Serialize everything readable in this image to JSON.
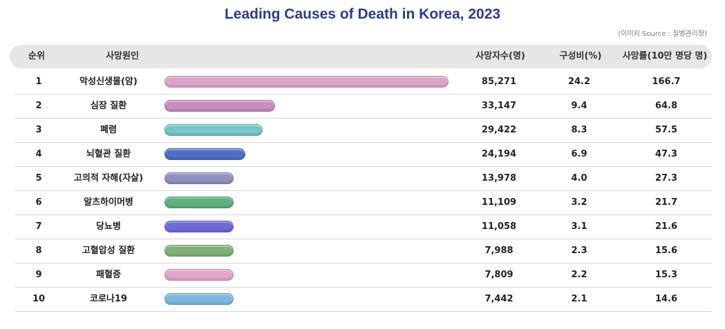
{
  "title": "Leading Causes of Death in Korea, 2023",
  "source": "(이미지 Source : 질병관리청)",
  "headers": {
    "rank": "순위",
    "cause": "사망원인",
    "deaths": "사망자수(명)",
    "share": "구성비(%)",
    "rate": "사망률(10만 명당 명)"
  },
  "chart_data": {
    "type": "bar",
    "orientation": "horizontal",
    "title": "Leading Causes of Death in Korea, 2023",
    "categories": [
      "악성신생물(암)",
      "심장 질환",
      "폐렴",
      "뇌혈관 질환",
      "고의적 자해(자살)",
      "알츠하이머병",
      "당뇨병",
      "고혈압성 질환",
      "패혈증",
      "코로나19"
    ],
    "ranks": [
      "1",
      "2",
      "3",
      "4",
      "5",
      "6",
      "7",
      "8",
      "9",
      "10"
    ],
    "values": [
      85271,
      33147,
      29422,
      24194,
      13978,
      11109,
      11058,
      7988,
      7809,
      7442
    ],
    "values_label": [
      "85,271",
      "33,147",
      "29,422",
      "24,194",
      "13,978",
      "11,109",
      "11,058",
      "7,988",
      "7,809",
      "7,442"
    ],
    "share_pct": [
      "24.2",
      "9.4",
      "8.3",
      "6.9",
      "4.0",
      "3.2",
      "3.1",
      "2.3",
      "2.2",
      "2.1"
    ],
    "rate_per_100k": [
      "166.7",
      "64.8",
      "57.5",
      "47.3",
      "27.3",
      "21.7",
      "21.6",
      "15.6",
      "15.3",
      "14.6"
    ],
    "colors": [
      "#d9a6c9",
      "#c98dbd",
      "#76c6c6",
      "#4f6fc4",
      "#8f8fc0",
      "#5fb07e",
      "#6e6ad6",
      "#7fb07a",
      "#e2a4c9",
      "#7db7de"
    ],
    "grid": false
  }
}
